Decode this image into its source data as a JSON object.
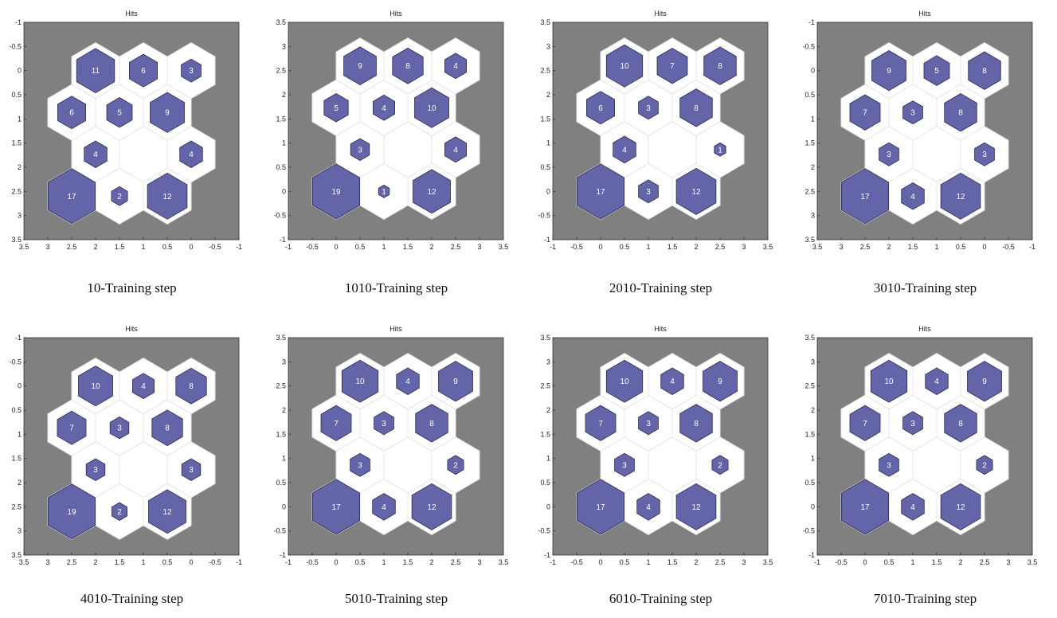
{
  "colors": {
    "background_plane": "#808080",
    "neuron_outline": "#ffffff",
    "neuron_grid_line": "#e6e6e6",
    "hit_fill": "#6464a8",
    "hit_stroke": "#2a2a55",
    "hit_label": "#ffffff"
  },
  "chart_data": [
    {
      "type": "heatmap",
      "subtype": "som-hits-hexagonal",
      "title": "Hits",
      "caption": "10-Training step",
      "xlim": [
        3.5,
        -1
      ],
      "ylim": [
        -1,
        3.5
      ],
      "x_reversed": true,
      "y_reversed": true,
      "xticks": [
        "3.5",
        "3",
        "2.5",
        "2",
        "1.5",
        "1",
        "0.5",
        "0",
        "-0.5",
        "-1"
      ],
      "yticks": [
        "-1",
        "-0.5",
        "0",
        "0.5",
        "1",
        "1.5",
        "2",
        "2.5",
        "3",
        "3.5"
      ],
      "neurons": [
        {
          "x": 2,
          "y": 0,
          "hits": 11
        },
        {
          "x": 1,
          "y": 0,
          "hits": 6
        },
        {
          "x": 0,
          "y": 0,
          "hits": 3
        },
        {
          "x": 2.5,
          "y": 0.866,
          "hits": 6
        },
        {
          "x": 1.5,
          "y": 0.866,
          "hits": 5
        },
        {
          "x": 0.5,
          "y": 0.866,
          "hits": 9
        },
        {
          "x": 2,
          "y": 1.732,
          "hits": 4
        },
        {
          "x": 1,
          "y": 1.732,
          "hits": 0
        },
        {
          "x": 0,
          "y": 1.732,
          "hits": 4
        },
        {
          "x": 2.5,
          "y": 2.598,
          "hits": 17
        },
        {
          "x": 1.5,
          "y": 2.598,
          "hits": 2
        },
        {
          "x": 0.5,
          "y": 2.598,
          "hits": 12
        }
      ]
    },
    {
      "type": "heatmap",
      "subtype": "som-hits-hexagonal",
      "title": "Hits",
      "caption": "1010-Training step",
      "xlim": [
        -1,
        3.5
      ],
      "ylim": [
        -1,
        3.5
      ],
      "x_reversed": false,
      "y_reversed": false,
      "xticks": [
        "-1",
        "-0.5",
        "0",
        "0.5",
        "1",
        "1.5",
        "2",
        "2.5",
        "3",
        "3.5"
      ],
      "yticks": [
        "-1",
        "-0.5",
        "0",
        "0.5",
        "1",
        "1.5",
        "2",
        "2.5",
        "3",
        "3.5"
      ],
      "neurons": [
        {
          "x": 0,
          "y": 0,
          "hits": 19
        },
        {
          "x": 1,
          "y": 0,
          "hits": 1
        },
        {
          "x": 2,
          "y": 0,
          "hits": 12
        },
        {
          "x": 0.5,
          "y": 0.866,
          "hits": 3
        },
        {
          "x": 1.5,
          "y": 0.866,
          "hits": 0
        },
        {
          "x": 2.5,
          "y": 0.866,
          "hits": 4
        },
        {
          "x": 0,
          "y": 1.732,
          "hits": 5
        },
        {
          "x": 1,
          "y": 1.732,
          "hits": 4
        },
        {
          "x": 2,
          "y": 1.732,
          "hits": 10
        },
        {
          "x": 0.5,
          "y": 2.598,
          "hits": 9
        },
        {
          "x": 1.5,
          "y": 2.598,
          "hits": 8
        },
        {
          "x": 2.5,
          "y": 2.598,
          "hits": 4
        }
      ]
    },
    {
      "type": "heatmap",
      "subtype": "som-hits-hexagonal",
      "title": "Hits",
      "caption": "2010-Training step",
      "xlim": [
        -1,
        3.5
      ],
      "ylim": [
        -1,
        3.5
      ],
      "x_reversed": false,
      "y_reversed": false,
      "xticks": [
        "-1",
        "-0.5",
        "0",
        "0.5",
        "1",
        "1.5",
        "2",
        "2.5",
        "3",
        "3.5"
      ],
      "yticks": [
        "-1",
        "-0.5",
        "0",
        "0.5",
        "1",
        "1.5",
        "2",
        "2.5",
        "3",
        "3.5"
      ],
      "neurons": [
        {
          "x": 0,
          "y": 0,
          "hits": 17
        },
        {
          "x": 1,
          "y": 0,
          "hits": 3
        },
        {
          "x": 2,
          "y": 0,
          "hits": 12
        },
        {
          "x": 0.5,
          "y": 0.866,
          "hits": 4
        },
        {
          "x": 1.5,
          "y": 0.866,
          "hits": 0
        },
        {
          "x": 2.5,
          "y": 0.866,
          "hits": 1
        },
        {
          "x": 0,
          "y": 1.732,
          "hits": 6
        },
        {
          "x": 1,
          "y": 1.732,
          "hits": 3
        },
        {
          "x": 2,
          "y": 1.732,
          "hits": 8
        },
        {
          "x": 0.5,
          "y": 2.598,
          "hits": 10
        },
        {
          "x": 1.5,
          "y": 2.598,
          "hits": 7
        },
        {
          "x": 2.5,
          "y": 2.598,
          "hits": 8
        }
      ]
    },
    {
      "type": "heatmap",
      "subtype": "som-hits-hexagonal",
      "title": "Hits",
      "caption": "3010-Training step",
      "xlim": [
        3.5,
        -1
      ],
      "ylim": [
        -1,
        3.5
      ],
      "x_reversed": true,
      "y_reversed": true,
      "xticks": [
        "3.5",
        "3",
        "2.5",
        "2",
        "1.5",
        "1",
        "0.5",
        "0",
        "-0.5",
        "-1"
      ],
      "yticks": [
        "-1",
        "-0.5",
        "0",
        "0.5",
        "1",
        "1.5",
        "2",
        "2.5",
        "3",
        "3.5"
      ],
      "neurons": [
        {
          "x": 2,
          "y": 0,
          "hits": 9
        },
        {
          "x": 1,
          "y": 0,
          "hits": 5
        },
        {
          "x": 0,
          "y": 0,
          "hits": 8
        },
        {
          "x": 2.5,
          "y": 0.866,
          "hits": 7
        },
        {
          "x": 1.5,
          "y": 0.866,
          "hits": 3
        },
        {
          "x": 0.5,
          "y": 0.866,
          "hits": 8
        },
        {
          "x": 2,
          "y": 1.732,
          "hits": 3
        },
        {
          "x": 1,
          "y": 1.732,
          "hits": 0
        },
        {
          "x": 0,
          "y": 1.732,
          "hits": 3
        },
        {
          "x": 2.5,
          "y": 2.598,
          "hits": 17
        },
        {
          "x": 1.5,
          "y": 2.598,
          "hits": 4
        },
        {
          "x": 0.5,
          "y": 2.598,
          "hits": 12
        }
      ]
    },
    {
      "type": "heatmap",
      "subtype": "som-hits-hexagonal",
      "title": "Hits",
      "caption": "4010-Training step",
      "xlim": [
        3.5,
        -1
      ],
      "ylim": [
        -1,
        3.5
      ],
      "x_reversed": true,
      "y_reversed": true,
      "xticks": [
        "3.5",
        "3",
        "2.5",
        "2",
        "1.5",
        "1",
        "0.5",
        "0",
        "-0.5",
        "-1"
      ],
      "yticks": [
        "-1",
        "-0.5",
        "0",
        "0.5",
        "1",
        "1.5",
        "2",
        "2.5",
        "3",
        "3.5"
      ],
      "neurons": [
        {
          "x": 2,
          "y": 0,
          "hits": 10
        },
        {
          "x": 1,
          "y": 0,
          "hits": 4
        },
        {
          "x": 0,
          "y": 0,
          "hits": 8
        },
        {
          "x": 2.5,
          "y": 0.866,
          "hits": 7
        },
        {
          "x": 1.5,
          "y": 0.866,
          "hits": 3
        },
        {
          "x": 0.5,
          "y": 0.866,
          "hits": 8
        },
        {
          "x": 2,
          "y": 1.732,
          "hits": 3
        },
        {
          "x": 1,
          "y": 1.732,
          "hits": 0
        },
        {
          "x": 0,
          "y": 1.732,
          "hits": 3
        },
        {
          "x": 2.5,
          "y": 2.598,
          "hits": 19
        },
        {
          "x": 1.5,
          "y": 2.598,
          "hits": 2
        },
        {
          "x": 0.5,
          "y": 2.598,
          "hits": 12
        }
      ]
    },
    {
      "type": "heatmap",
      "subtype": "som-hits-hexagonal",
      "title": "Hits",
      "caption": "5010-Training step",
      "xlim": [
        -1,
        3.5
      ],
      "ylim": [
        -1,
        3.5
      ],
      "x_reversed": false,
      "y_reversed": false,
      "xticks": [
        "-1",
        "-0.5",
        "0",
        "0.5",
        "1",
        "1.5",
        "2",
        "2.5",
        "3",
        "3.5"
      ],
      "yticks": [
        "-1",
        "-0.5",
        "0",
        "0.5",
        "1",
        "1.5",
        "2",
        "2.5",
        "3",
        "3.5"
      ],
      "neurons": [
        {
          "x": 0,
          "y": 0,
          "hits": 17
        },
        {
          "x": 1,
          "y": 0,
          "hits": 4
        },
        {
          "x": 2,
          "y": 0,
          "hits": 12
        },
        {
          "x": 0.5,
          "y": 0.866,
          "hits": 3
        },
        {
          "x": 1.5,
          "y": 0.866,
          "hits": 0
        },
        {
          "x": 2.5,
          "y": 0.866,
          "hits": 2
        },
        {
          "x": 0,
          "y": 1.732,
          "hits": 7
        },
        {
          "x": 1,
          "y": 1.732,
          "hits": 3
        },
        {
          "x": 2,
          "y": 1.732,
          "hits": 8
        },
        {
          "x": 0.5,
          "y": 2.598,
          "hits": 10
        },
        {
          "x": 1.5,
          "y": 2.598,
          "hits": 4
        },
        {
          "x": 2.5,
          "y": 2.598,
          "hits": 9
        }
      ]
    },
    {
      "type": "heatmap",
      "subtype": "som-hits-hexagonal",
      "title": "Hits",
      "caption": "6010-Training step",
      "xlim": [
        -1,
        3.5
      ],
      "ylim": [
        -1,
        3.5
      ],
      "x_reversed": false,
      "y_reversed": false,
      "xticks": [
        "-1",
        "-0.5",
        "0",
        "0.5",
        "1",
        "1.5",
        "2",
        "2.5",
        "3",
        "3.5"
      ],
      "yticks": [
        "-1",
        "-0.5",
        "0",
        "0.5",
        "1",
        "1.5",
        "2",
        "2.5",
        "3",
        "3.5"
      ],
      "neurons": [
        {
          "x": 0,
          "y": 0,
          "hits": 17
        },
        {
          "x": 1,
          "y": 0,
          "hits": 4
        },
        {
          "x": 2,
          "y": 0,
          "hits": 12
        },
        {
          "x": 0.5,
          "y": 0.866,
          "hits": 3
        },
        {
          "x": 1.5,
          "y": 0.866,
          "hits": 0
        },
        {
          "x": 2.5,
          "y": 0.866,
          "hits": 2
        },
        {
          "x": 0,
          "y": 1.732,
          "hits": 7
        },
        {
          "x": 1,
          "y": 1.732,
          "hits": 3
        },
        {
          "x": 2,
          "y": 1.732,
          "hits": 8
        },
        {
          "x": 0.5,
          "y": 2.598,
          "hits": 10
        },
        {
          "x": 1.5,
          "y": 2.598,
          "hits": 4
        },
        {
          "x": 2.5,
          "y": 2.598,
          "hits": 9
        }
      ]
    },
    {
      "type": "heatmap",
      "subtype": "som-hits-hexagonal",
      "title": "Hits",
      "caption": "7010-Training step",
      "xlim": [
        -1,
        3.5
      ],
      "ylim": [
        -1,
        3.5
      ],
      "x_reversed": false,
      "y_reversed": false,
      "xticks": [
        "-1",
        "-0.5",
        "0",
        "0.5",
        "1",
        "1.5",
        "2",
        "2.5",
        "3",
        "3.5"
      ],
      "yticks": [
        "-1",
        "-0.5",
        "0",
        "0.5",
        "1",
        "1.5",
        "2",
        "2.5",
        "3",
        "3.5"
      ],
      "neurons": [
        {
          "x": 0,
          "y": 0,
          "hits": 17
        },
        {
          "x": 1,
          "y": 0,
          "hits": 4
        },
        {
          "x": 2,
          "y": 0,
          "hits": 12
        },
        {
          "x": 0.5,
          "y": 0.866,
          "hits": 3
        },
        {
          "x": 1.5,
          "y": 0.866,
          "hits": 0
        },
        {
          "x": 2.5,
          "y": 0.866,
          "hits": 2
        },
        {
          "x": 0,
          "y": 1.732,
          "hits": 7
        },
        {
          "x": 1,
          "y": 1.732,
          "hits": 3
        },
        {
          "x": 2,
          "y": 1.732,
          "hits": 8
        },
        {
          "x": 0.5,
          "y": 2.598,
          "hits": 10
        },
        {
          "x": 1.5,
          "y": 2.598,
          "hits": 4
        },
        {
          "x": 2.5,
          "y": 2.598,
          "hits": 9
        }
      ]
    }
  ]
}
